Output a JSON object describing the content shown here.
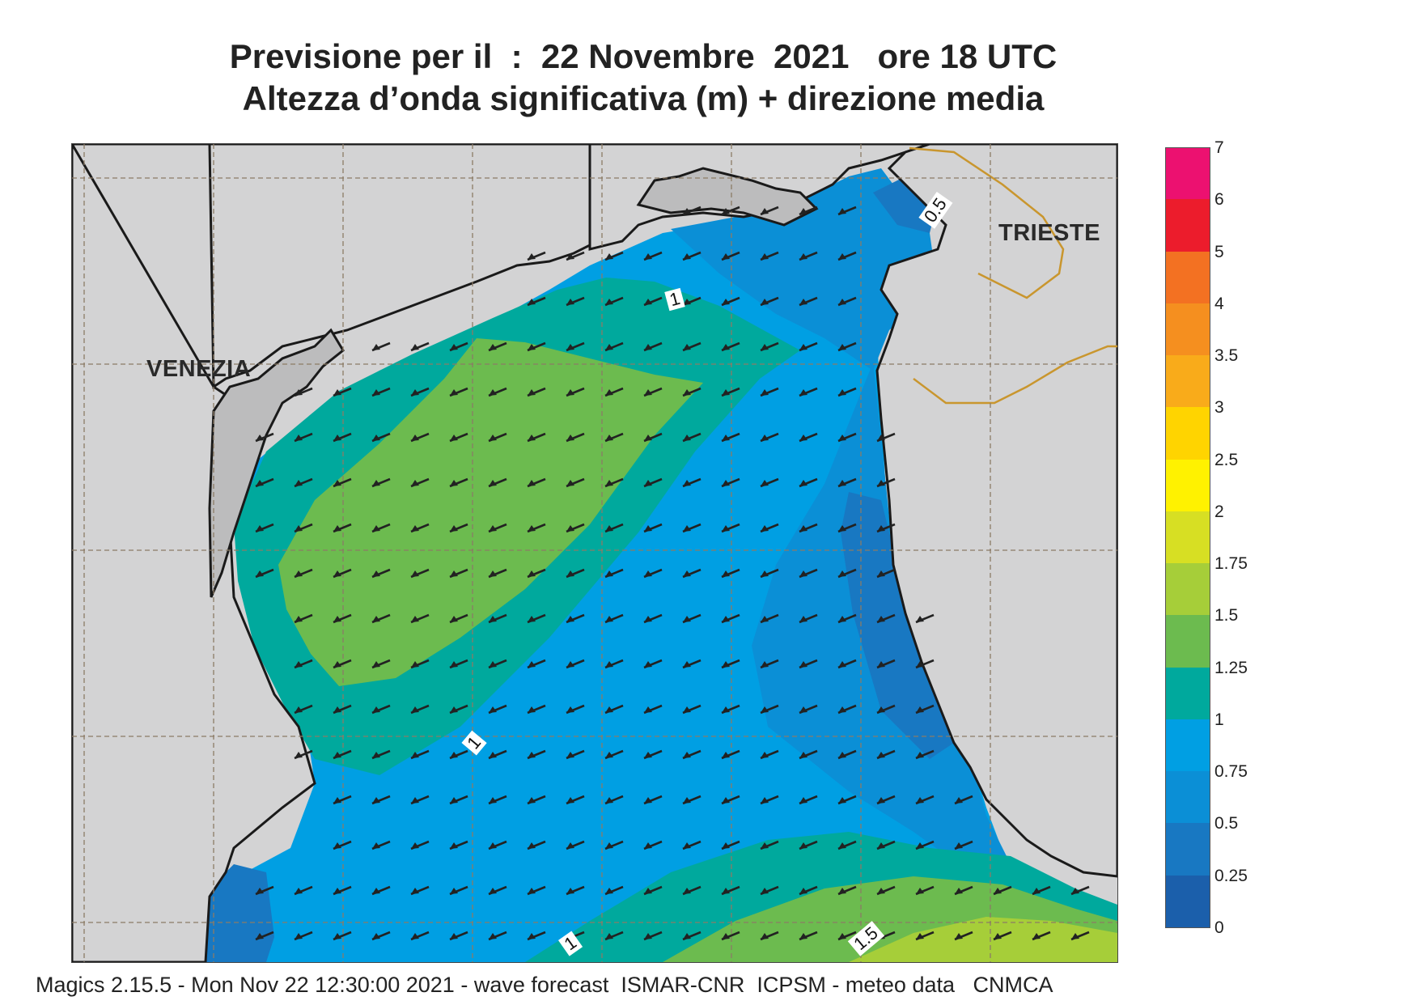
{
  "title": {
    "line1": "Previsione per il  :  22 Novembre  2021   ore 18 UTC",
    "line2": "Altezza d’onda significativa (m) + direzione media"
  },
  "map": {
    "cities": [
      {
        "id": "venezia",
        "name": "VENEZIA"
      },
      {
        "id": "trieste",
        "name": "TRIESTE"
      }
    ],
    "contour_labels": [
      "0.5",
      "1",
      "1",
      "1",
      "1.5"
    ],
    "wave_direction": "from northeast toward southwest",
    "colors": {
      "land": "#d3d3d4",
      "lagoon_land": "#bcbcbd",
      "coastline": "#1a1a1a",
      "border": "#c9962e",
      "grid": "#8c7b66",
      "arrow": "#222222"
    }
  },
  "legend": {
    "ticks": [
      "7",
      "6",
      "5",
      "4",
      "3.5",
      "3",
      "2.5",
      "2",
      "1.75",
      "1.5",
      "1.25",
      "1",
      "0.75",
      "0.5",
      "0.25",
      "0"
    ],
    "bands": [
      {
        "from": 6,
        "to": 7,
        "color": "#ec1170"
      },
      {
        "from": 5,
        "to": 6,
        "color": "#ec1c2c"
      },
      {
        "from": 4,
        "to": 5,
        "color": "#f37122"
      },
      {
        "from": 3.5,
        "to": 4,
        "color": "#f58f1f"
      },
      {
        "from": 3,
        "to": 3.5,
        "color": "#f9ab1a"
      },
      {
        "from": 2.5,
        "to": 3,
        "color": "#ffd400"
      },
      {
        "from": 2,
        "to": 2.5,
        "color": "#fff200"
      },
      {
        "from": 1.75,
        "to": 2,
        "color": "#d7df23"
      },
      {
        "from": 1.5,
        "to": 1.75,
        "color": "#a6ce39"
      },
      {
        "from": 1.25,
        "to": 1.5,
        "color": "#6cbb4f"
      },
      {
        "from": 1,
        "to": 1.25,
        "color": "#00a99d"
      },
      {
        "from": 0.75,
        "to": 1,
        "color": "#009fe3"
      },
      {
        "from": 0.5,
        "to": 0.75,
        "color": "#0b8fd6"
      },
      {
        "from": 0.25,
        "to": 0.5,
        "color": "#1878c2"
      },
      {
        "from": 0,
        "to": 0.25,
        "color": "#1b5fab"
      }
    ]
  },
  "footer": "Magics 2.15.5 - Mon Nov 22 12:30:00 2021 - wave forecast  ISMAR-CNR  ICPSM - meteo data   CNMCA"
}
